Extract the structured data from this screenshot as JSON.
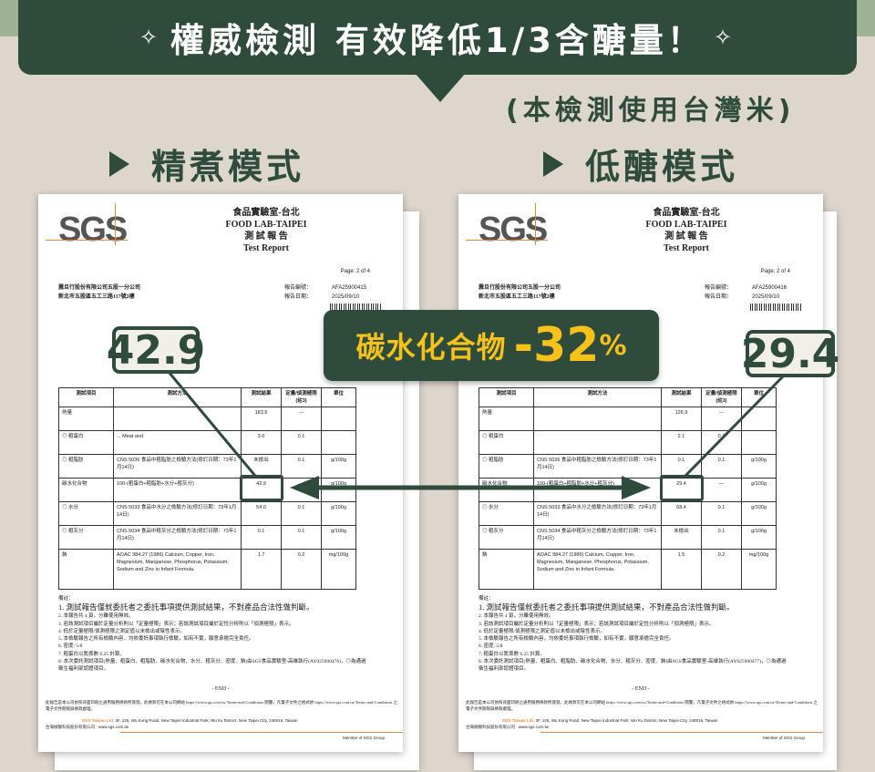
{
  "headline": {
    "text": "權威檢測 有效降低1/3含醣量！",
    "sparkle_icon": "sparkle-icon"
  },
  "note": "(本檢測使用台灣米)",
  "modes": [
    {
      "label": "精煮模式"
    },
    {
      "label": "低醣模式"
    }
  ],
  "callout": {
    "label": "碳水化合物",
    "value": "-32",
    "unit": "%"
  },
  "highlights": {
    "left": "42.9",
    "right": "29.4"
  },
  "colors": {
    "dark_green": "#2e4b3c",
    "yellow": "#f6c21a",
    "background": "#ddd6cc"
  },
  "reports": [
    {
      "lab_cn": "食品實驗室-台北",
      "lab_en": "FOOD LAB-TAIPEI",
      "title_cn": "測 試 報 告",
      "title_en": "Test Report",
      "page": "Page: 2 of 4",
      "client_name": "震旦行股份有限公司五股一分公司",
      "client_addr": "新北市五股區五工三路117號2樓",
      "report_no_label": "報告編號：",
      "report_no": "AFA25900415",
      "date_label": "報告日期：",
      "date": "2025/09/10",
      "headers": [
        "測試項目",
        "測試方法",
        "測試結果",
        "定量/偵測極限(註3)",
        "單位"
      ],
      "rows": [
        {
          "item": "熱量",
          "method": "",
          "result": "183.6",
          "loq": "---",
          "unit": ""
        },
        {
          "item": "◎ 粗蛋白",
          "method": "... Meat and",
          "result": "3.0",
          "loq": "0.1",
          "unit": ""
        },
        {
          "item": "◎ 粗脂肪",
          "method": "CNS 5036 食品中粗脂肪之檢驗方法(修訂日期：73年1月14日)",
          "result": "未檢出",
          "loq": "0.1",
          "unit": "g/100g"
        },
        {
          "item": "碳水化合物",
          "method": "100-(粗蛋白+粗脂肪+水分+粗灰分)",
          "result": "42.9",
          "loq": "---",
          "unit": "g/100g"
        },
        {
          "item": "◎ 水分",
          "method": "CNS 5033 食品中水分之檢驗方法(修訂日期：73年1月14日)",
          "result": "54.0",
          "loq": "0.1",
          "unit": "g/100g"
        },
        {
          "item": "◎ 粗灰分",
          "method": "CNS 5034 食品中粗灰分之檢驗方法(修訂日期：73年1月14日)",
          "result": "0.1",
          "loq": "0.1",
          "unit": "g/100g"
        },
        {
          "item": "鈉",
          "method": "AOAC 984.27 (1986) Calcium, Copper, Iron, Magnesium, Manganese, Phosphorus, Potassium, Sodium and Zinc in Infant Formula.",
          "result": "1.7",
          "loq": "0.2",
          "unit": "mg/100g"
        }
      ],
      "notes_title": "備註：",
      "notes": [
        "1. 測試報告僅就委託者之委託事項提供測試結果，不對產品合法性做判斷。",
        "2. 本報告共 4 頁，分離使用無效。",
        "3. 若該測試項目屬於定量分析則以「定量極限」表示；若該測試項目屬於定性分析則以「偵測極限」表示。",
        "4. 低於定量極限/偵測極限之測定值以未檢出或陰性表示。",
        "5. 本檢驗報告之所有檢驗內容，均依委託事項執行檢驗，如有不實，願意承擔完全責任。",
        "6. 密度: 5/8",
        "7. 粗蛋白以氮係數 6.25 計算。",
        "8. 本次委託測試項目(熱量、粗蛋白、粗脂肪、碳水化合物、水分、粗灰分、密度、鈉)由SGS食品實驗室-高雄執行(AY025900476)，◎為通過衛生福利部認證項目。"
      ],
      "end": "- END -",
      "legal": "此報告是本公司依照背面印刷之通用服務條款所簽發，此條款可在本公司網站 https://www.sgs.com.tw/Terms-and-Conditions 閱覽，凡電子文件之格式依 https://www.sgs.com.tw/Terms-and-Conditions 之電子文件期限與條款處理。",
      "company_en": "SGS Taiwan Ltd.",
      "company_cn": "台灣檢驗科技股份有限公司",
      "address": "3F, 125, Wu Kung Road, New Taipei Industrial Park, Wu Ku District, New Taipei City, 248016, Taiwan",
      "website": "www.sgs.com.tw",
      "member": "Member of SGS Group"
    },
    {
      "lab_cn": "食品實驗室-台北",
      "lab_en": "FOOD LAB-TAIPEI",
      "title_cn": "測 試 報 告",
      "title_en": "Test Report",
      "page": "Page: 2 of 4",
      "client_name": "震旦行股份有限公司五股一分公司",
      "client_addr": "新北市五股區五工三路117號2樓",
      "report_no_label": "報告編號：",
      "report_no": "AFA25900416",
      "date_label": "報告日期：",
      "date": "2025/09/10",
      "headers": [
        "測試項目",
        "測試方法",
        "測試結果",
        "定量/偵測極限(註3)",
        "單位"
      ],
      "rows": [
        {
          "item": "熱量",
          "method": "",
          "result": "126.9",
          "loq": "---",
          "unit": ""
        },
        {
          "item": "◎ 粗蛋白",
          "method": "",
          "result": "2.1",
          "loq": "0.1",
          "unit": ""
        },
        {
          "item": "◎ 粗脂肪",
          "method": "CNS 5036 食品中粗脂肪之檢驗方法(修訂日期：73年1月14日)",
          "result": "0.1",
          "loq": "0.1",
          "unit": "g/100g"
        },
        {
          "item": "碳水化合物",
          "method": "100-(粗蛋白+粗脂肪+水分+粗灰分)",
          "result": "29.4",
          "loq": "---",
          "unit": "g/100g"
        },
        {
          "item": "◎ 水分",
          "method": "CNS 5033 食品中水分之檢驗方法(修訂日期：73年1月14日)",
          "result": "68.4",
          "loq": "0.1",
          "unit": "g/100g"
        },
        {
          "item": "◎ 粗灰分",
          "method": "CNS 5034 食品中粗灰分之檢驗方法(修訂日期：73年1月14日)",
          "result": "未檢出",
          "loq": "0.1",
          "unit": "g/100g"
        },
        {
          "item": "鈉",
          "method": "AOAC 984.27 (1986) Calcium, Copper, Iron, Magnesium, Manganese, Phosphorus, Potassium, Sodium and Zinc in Infant Formula.",
          "result": "1.5",
          "loq": "0.2",
          "unit": "mg/100g"
        }
      ],
      "notes_title": "備註：",
      "notes": [
        "1. 測試報告僅就委託者之委託事項提供測試結果，不對產品合法性做判斷。",
        "2. 本報告共 4 頁，分離使用無效。",
        "3. 若該測試項目屬於定量分析則以「定量極限」表示；若該測試項目屬於定性分析則以「偵測極限」表示。",
        "4. 低於定量極限/偵測極限之測定值以未檢出或陰性表示。",
        "5. 本檢驗報告之所有檢驗內容，均依委託事項執行檢驗，如有不實，願意承擔完全責任。",
        "6. 密度: 5/8",
        "7. 粗蛋白以氮係數 6.25 計算。",
        "8. 本次委託測試項目(熱量、粗蛋白、粗脂肪、碳水化合物、水分、粗灰分、密度、鈉)由SGS食品實驗室-高雄執行(AY025900477)，◎為通過衛生福利部認證項目。"
      ],
      "end": "- END -",
      "legal": "此報告是本公司依照背面印刷之通用服務條款所簽發，此條款可在本公司網站 https://www.sgs.com.tw/Terms-and-Conditions 閱覽，凡電子文件之格式依 https://www.sgs.com.tw/Terms-and-Conditions 之電子文件期限與條款處理。",
      "company_en": "SGS Taiwan Ltd.",
      "company_cn": "台灣檢驗科技股份有限公司",
      "address": "3F, 125, Wu Kung Road, New Taipei Industrial Park, Wu Ku District, New Taipei City, 248016, Taiwan",
      "website": "www.sgs.com.tw",
      "member": "Member of SGS Group"
    }
  ]
}
